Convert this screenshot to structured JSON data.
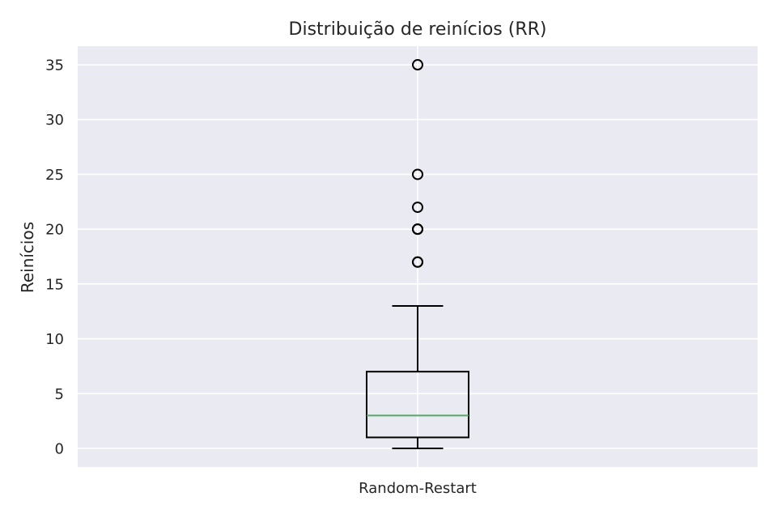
{
  "chart_data": {
    "type": "box",
    "title": "Distribuição de reinícios (RR)",
    "xlabel": "",
    "ylabel": "Reinícios",
    "categories": [
      "Random-Restart"
    ],
    "ylim": [
      -1.7,
      36.7
    ],
    "yticks": [
      0,
      5,
      10,
      15,
      20,
      25,
      30,
      35
    ],
    "grid": true,
    "boxes": [
      {
        "category": "Random-Restart",
        "whisker_low": 0,
        "q1": 1,
        "median": 3,
        "q3": 7,
        "whisker_high": 13,
        "outliers": [
          17,
          17,
          20,
          20,
          22,
          25,
          35
        ]
      }
    ],
    "colors": {
      "plot_background": "#eaeaf2",
      "grid": "#ffffff",
      "box": "#000000",
      "median": "#55a868",
      "text": "#262626"
    }
  }
}
